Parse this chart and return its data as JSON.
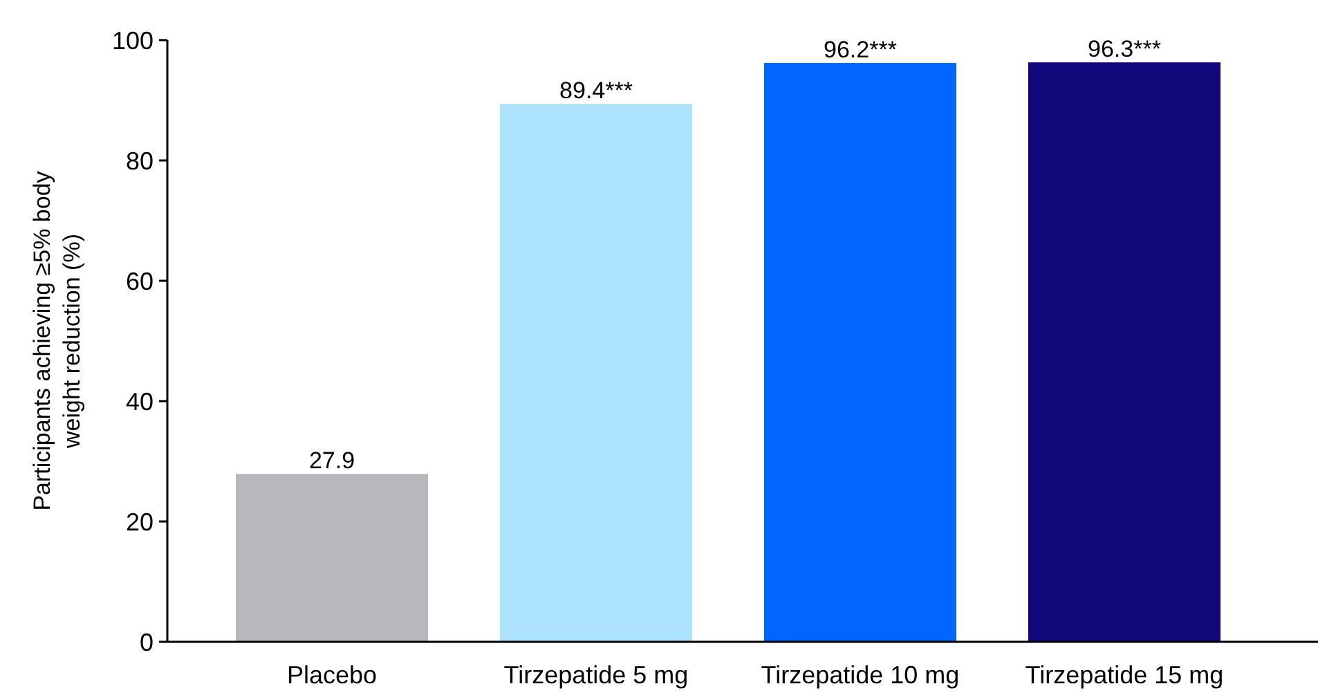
{
  "chart_data": {
    "type": "bar",
    "ylabel": "Participants achieving ≥5% body weight reduction (%)",
    "categories": [
      "Placebo",
      "Tirzepatide 5 mg",
      "Tirzepatide 10 mg",
      "Tirzepatide 15 mg"
    ],
    "values": [
      27.9,
      89.4,
      96.2,
      96.3
    ],
    "colors": [
      "#b8b7bc",
      "#ace2fb",
      "#0066ff",
      "#11067a"
    ],
    "value_labels": [
      "27.9",
      "89.4***",
      "96.2***",
      "96.3***"
    ],
    "ylim": [
      0,
      100
    ],
    "yticks": [
      0,
      20,
      40,
      60,
      80,
      100
    ],
    "grid": false
  }
}
